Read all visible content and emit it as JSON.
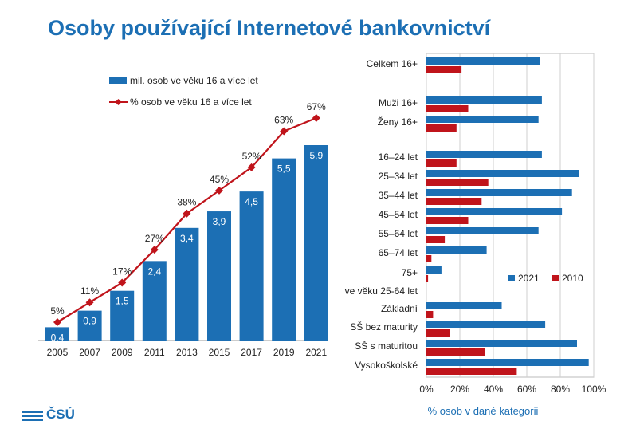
{
  "title": "Osoby používající Internetové bankovnictví",
  "logo": {
    "text": "ČSÚ"
  },
  "colors": {
    "title": "#1c6fb4",
    "blue": "#1c6fb4",
    "red": "#c0141b"
  },
  "chart_data": [
    {
      "type": "bar+line",
      "categories": [
        "2005",
        "2007",
        "2009",
        "2011",
        "2013",
        "2015",
        "2017",
        "2019",
        "2021"
      ],
      "series": [
        {
          "name": "mil. osob ve věku 16 a více let",
          "kind": "bar",
          "color": "#1c6fb4",
          "values": [
            0.4,
            0.9,
            1.5,
            2.4,
            3.4,
            3.9,
            4.5,
            5.5,
            5.9
          ],
          "labels": [
            "0,4",
            "0,9",
            "1,5",
            "2,4",
            "3,4",
            "3,9",
            "4,5",
            "5,5",
            "5,9"
          ]
        },
        {
          "name": "% osob ve věku 16 a více let",
          "kind": "line",
          "color": "#c0141b",
          "values": [
            5,
            11,
            17,
            27,
            38,
            45,
            52,
            63,
            67
          ],
          "labels": [
            "5%",
            "11%",
            "17%",
            "27%",
            "38%",
            "45%",
            "52%",
            "63%",
            "67%"
          ]
        }
      ],
      "legend_position": "top-left",
      "grid": false
    },
    {
      "type": "bar",
      "orientation": "horizontal",
      "categories": [
        "Celkem 16+",
        "Muži 16+",
        "Ženy 16+",
        "16–24 let",
        "25–34 let",
        "35–44 let",
        "45–54 let",
        "55–64 let",
        "65–74 let",
        "75+",
        "ve věku 25-64 let",
        "Základní",
        "SŠ bez maturity",
        "SŠ s maturitou",
        "Vysokoškolské"
      ],
      "series": [
        {
          "name": "2021",
          "color": "#1c6fb4",
          "values": [
            68,
            69,
            67,
            69,
            91,
            87,
            81,
            67,
            36,
            9,
            null,
            45,
            71,
            90,
            97
          ]
        },
        {
          "name": "2010",
          "color": "#c0141b",
          "values": [
            21,
            25,
            18,
            18,
            37,
            33,
            25,
            11,
            3,
            1,
            null,
            4,
            14,
            35,
            54
          ]
        }
      ],
      "xlim": [
        0,
        100
      ],
      "xticks": [
        "0%",
        "20%",
        "40%",
        "60%",
        "80%",
        "100%"
      ],
      "xlabel": "% osob v dané kategorii",
      "legend_position": "center-right",
      "grid": true
    }
  ]
}
